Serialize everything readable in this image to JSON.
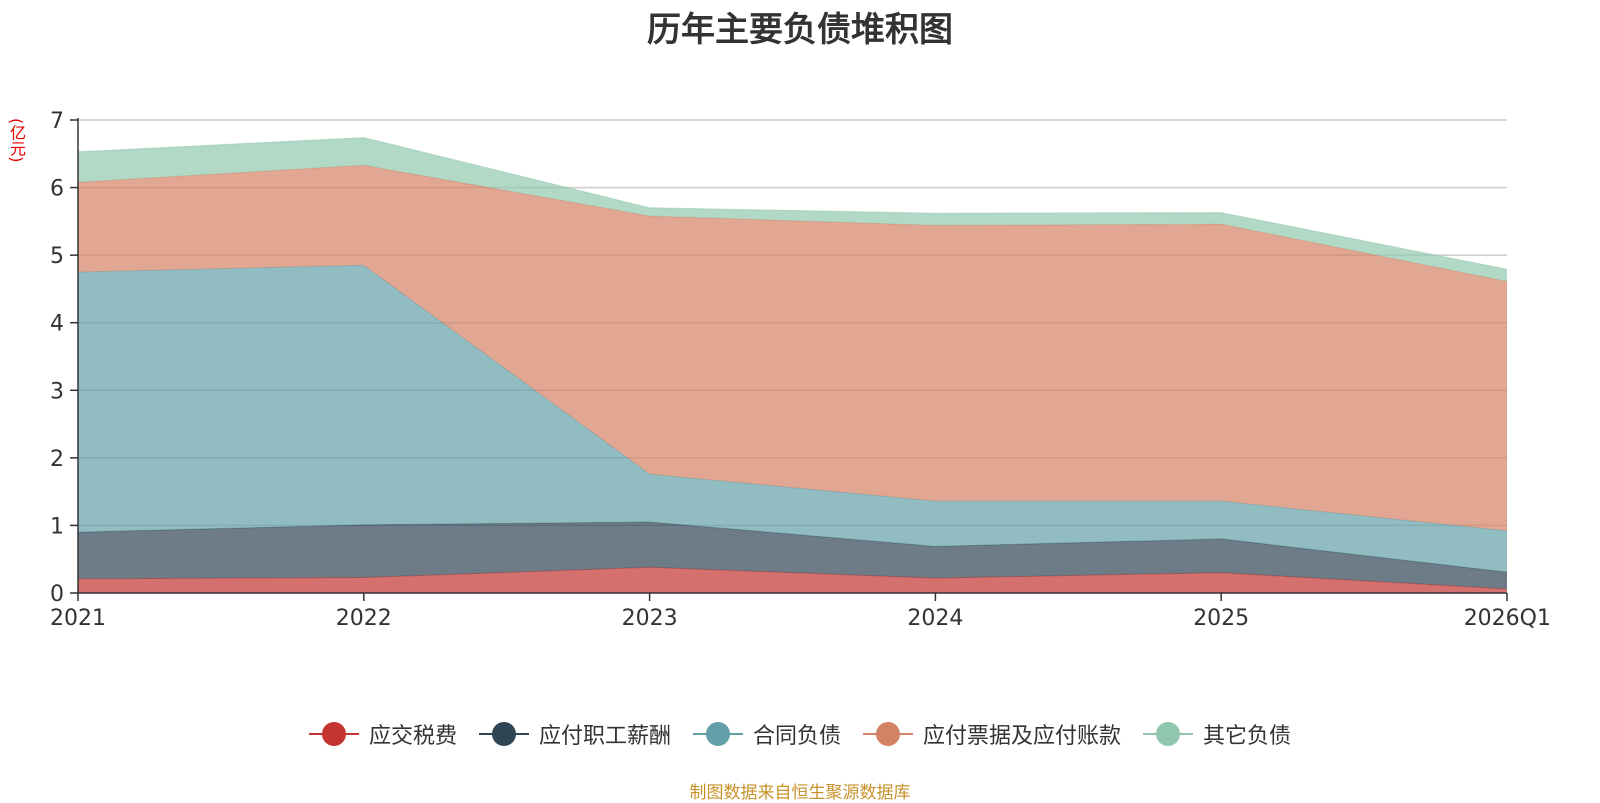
{
  "chart_data": {
    "type": "area",
    "stacked": true,
    "title": "历年主要负债堆积图",
    "unit_label": "(亿元)",
    "categories": [
      "2021",
      "2022",
      "2023",
      "2024",
      "2025",
      "2026Q1"
    ],
    "ylim": [
      0,
      7
    ],
    "yticks": [
      0,
      1,
      2,
      3,
      4,
      5,
      6,
      7
    ],
    "grid": true,
    "legend_position": "bottom",
    "series": [
      {
        "name": "应交税费",
        "color": "#c23531",
        "values": [
          0.21,
          0.23,
          0.38,
          0.22,
          0.3,
          0.06
        ]
      },
      {
        "name": "应付职工薪酬",
        "color": "#2f4554",
        "values": [
          0.69,
          0.78,
          0.67,
          0.47,
          0.5,
          0.25
        ]
      },
      {
        "name": "合同负债",
        "color": "#61a0a8",
        "values": [
          3.85,
          3.84,
          0.71,
          0.67,
          0.56,
          0.61
        ]
      },
      {
        "name": "应付票据及应付账款",
        "color": "#d48265",
        "values": [
          1.33,
          1.48,
          3.82,
          4.08,
          4.1,
          3.69
        ]
      },
      {
        "name": "其它负债",
        "color": "#91c7ae",
        "values": [
          0.45,
          0.41,
          0.12,
          0.18,
          0.17,
          0.18
        ]
      }
    ]
  },
  "source_text": "制图数据来自恒生聚源数据库"
}
